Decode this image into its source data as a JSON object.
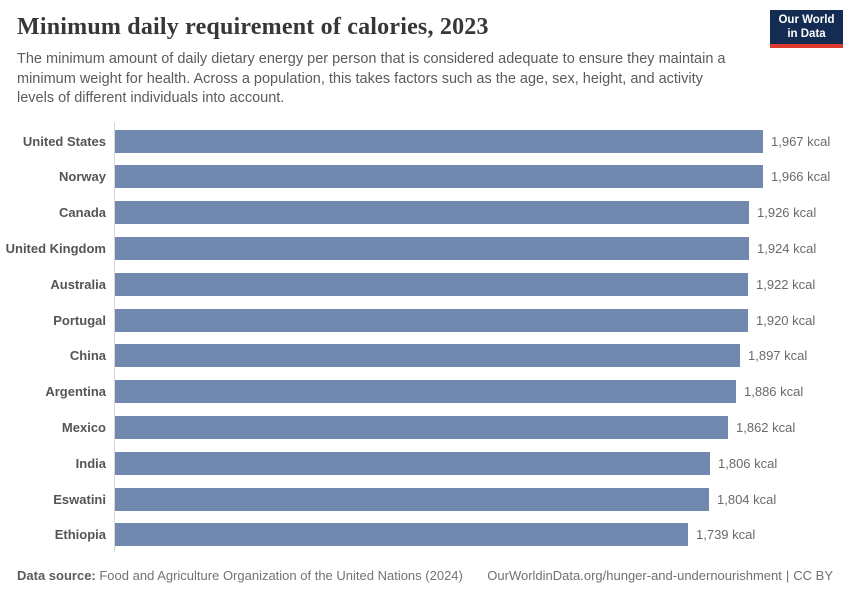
{
  "header": {
    "title": "Minimum daily requirement of calories, 2023",
    "subtitle": "The minimum amount of daily dietary energy per person that is considered adequate to ensure they maintain a minimum weight for health. Across a population, this takes factors such as the age, sex, height, and activity levels of different individuals into account.",
    "logo": {
      "line1": "Our World",
      "line2": "in Data"
    }
  },
  "chart_data": {
    "type": "bar",
    "orientation": "horizontal",
    "title": "Minimum daily requirement of calories, 2023",
    "unit": "kcal",
    "xlim": [
      0,
      1967
    ],
    "grid": false,
    "legend": "none",
    "bar_color": "#7189ae",
    "categories": [
      "United States",
      "Norway",
      "Canada",
      "United Kingdom",
      "Australia",
      "Portugal",
      "China",
      "Argentina",
      "Mexico",
      "India",
      "Eswatini",
      "Ethiopia"
    ],
    "values": [
      1967,
      1966,
      1926,
      1924,
      1922,
      1920,
      1897,
      1886,
      1862,
      1806,
      1804,
      1739
    ],
    "value_labels": [
      "1,967 kcal",
      "1,966 kcal",
      "1,926 kcal",
      "1,924 kcal",
      "1,922 kcal",
      "1,920 kcal",
      "1,897 kcal",
      "1,886 kcal",
      "1,862 kcal",
      "1,806 kcal",
      "1,804 kcal",
      "1,739 kcal"
    ]
  },
  "footer": {
    "source_label": "Data source:",
    "source_text": " Food and Agriculture Organization of the United Nations (2024)",
    "link_text": "OurWorldinData.org/hunger-and-undernourishment",
    "separator": "|",
    "license": "CC BY"
  },
  "colors": {
    "bar": "#7189ae",
    "logo_background": "#152c52",
    "logo_red": "#dc3b2e",
    "axis_line": "#d9d9d9"
  }
}
